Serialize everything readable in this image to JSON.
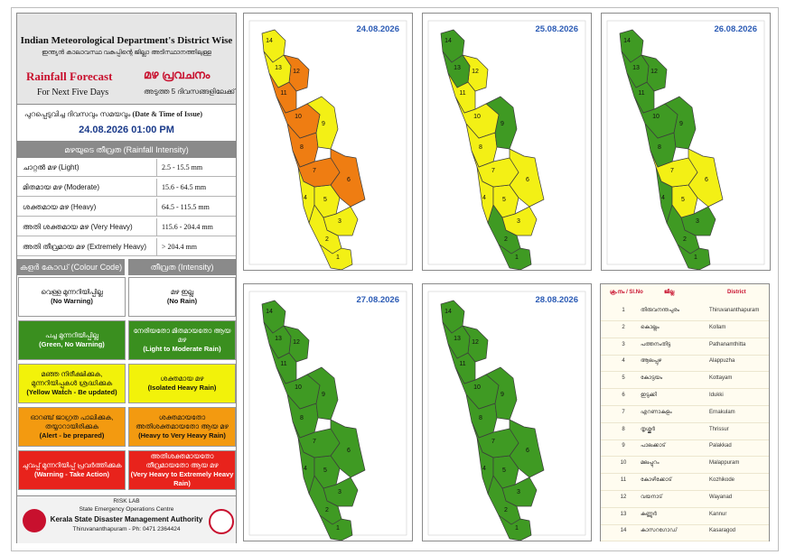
{
  "header": {
    "title_en": "Indian Meteorological Department's District Wise",
    "title_ml": "ഇന്ത്യൻ കാലാവസ്ഥ വകുപ്പിന്റെ ജില്ലാ അടിസ്ഥാനത്തിലുള്ള",
    "rainfall_forecast_en": "Rainfall Forecast",
    "rainfall_forecast_ml": "മഴ പ്രവചനം",
    "next_days_en": "For Next Five Days",
    "next_days_ml": "അടുത്ത 5 ദിവസങ്ങളിലേക്ക്"
  },
  "issue": {
    "label_ml": "പുറപ്പെടുവിച്ച ദിവസവും സമയവും",
    "label_en": "(Date & Time of Issue)",
    "datetime": "24.08.2026   01:00 PM"
  },
  "intensity": {
    "heading": "മഴയുടെ തീവ്രത (Rainfall Intensity)",
    "rows": [
      {
        "label": "ചാറ്റൽ മഴ (Light)",
        "range": "2.5 - 15.5 mm"
      },
      {
        "label": "മിതമായ മഴ (Moderate)",
        "range": "15.6 - 64.5 mm"
      },
      {
        "label": "ശക്തമായ മഴ (Heavy)",
        "range": "64.5 - 115.5 mm"
      },
      {
        "label": "അതി ശക്തമായ മഴ (Very Heavy)",
        "range": "115.6 - 204.4 mm"
      },
      {
        "label": "അതി തീവ്രമായ മഴ (Extremely Heavy)",
        "range": "> 204.4 mm"
      }
    ]
  },
  "colour_code": {
    "heading_left": "കളർ കോഡ് (Colour Code)",
    "heading_right": "തീവ്രത (Intensity)",
    "rows": [
      {
        "code_ml": "വെള്ള മുന്നറിയിപ്പില്ല",
        "code_en": "(No Warning)",
        "int_ml": "മഴ ഇല്ല",
        "int_en": "(No Rain)",
        "color": "#ffffff",
        "text": "#111111"
      },
      {
        "code_ml": "പച്ച മുന്നറിയിപ്പില്ല",
        "code_en": "(Green, No Warning)",
        "int_ml": "നേരിയതോ മിതമായതോ ആയ മഴ",
        "int_en": "(Light to Moderate Rain)",
        "color": "#3a8f1f",
        "text": "#ffffff"
      },
      {
        "code_ml": "മഞ്ഞ നിരീക്ഷിക്കുക, മുന്നറിയിപ്പുകൾ ശ്രദ്ധിക്കുക",
        "code_en": "(Yellow Watch - Be updated)",
        "int_ml": "ശക്തമായ മഴ",
        "int_en": "(Isolated Heavy Rain)",
        "color": "#f2f20a",
        "text": "#111111"
      },
      {
        "code_ml": "ഓറഞ്ച് ജാഗ്രത പാലിക്കുക, തയ്യാറായിരിക്കുക",
        "code_en": "(Alert - be prepared)",
        "int_ml": "ശക്തമായതോ അതിശക്തമായതോ ആയ മഴ",
        "int_en": "(Heavy to Very Heavy Rain)",
        "color": "#f39a10",
        "text": "#111111"
      },
      {
        "code_ml": "ചുവപ്പ് മുന്നറിയിപ്പ് പ്രവർത്തിക്കുക",
        "code_en": "(Warning - Take Action)",
        "int_ml": "അതിശക്തമായതോ തീവ്രമായതോ ആയ മഴ",
        "int_en": "(Very Heavy to Extremely Heavy Rain)",
        "color": "#e8231c",
        "text": "#ffffff"
      }
    ]
  },
  "footer": {
    "risk_lab": "RISK LAB",
    "centre": "State Emergency Operations Centre",
    "authority": "Kerala State Disaster Management Authority",
    "address": "Thiruvananthapuram - Ph: 0471 2364424"
  },
  "panels": [
    {
      "date": "24.08.2026",
      "colors": {
        "1": "yellow",
        "2": "yellow",
        "3": "yellow",
        "4": "yellow",
        "5": "yellow",
        "6": "orange",
        "7": "orange",
        "8": "orange",
        "9": "yellow",
        "10": "orange",
        "11": "orange",
        "12": "orange",
        "13": "yellow",
        "14": "yellow"
      }
    },
    {
      "date": "25.08.2026",
      "colors": {
        "1": "green",
        "2": "green",
        "3": "yellow",
        "4": "yellow",
        "5": "yellow",
        "6": "yellow",
        "7": "yellow",
        "8": "yellow",
        "9": "green",
        "10": "yellow",
        "11": "yellow",
        "12": "yellow",
        "13": "green",
        "14": "green"
      }
    },
    {
      "date": "26.08.2026",
      "colors": {
        "1": "green",
        "2": "green",
        "3": "green",
        "4": "green",
        "5": "yellow",
        "6": "yellow",
        "7": "yellow",
        "8": "green",
        "9": "green",
        "10": "green",
        "11": "green",
        "12": "green",
        "13": "green",
        "14": "green"
      }
    },
    {
      "date": "27.08.2026",
      "colors": {
        "1": "green",
        "2": "green",
        "3": "green",
        "4": "green",
        "5": "green",
        "6": "green",
        "7": "green",
        "8": "green",
        "9": "green",
        "10": "green",
        "11": "green",
        "12": "green",
        "13": "green",
        "14": "green"
      }
    },
    {
      "date": "28.08.2026",
      "colors": {
        "1": "green",
        "2": "green",
        "3": "green",
        "4": "green",
        "5": "green",
        "6": "green",
        "7": "green",
        "8": "green",
        "9": "green",
        "10": "green",
        "11": "green",
        "12": "green",
        "13": "green",
        "14": "green"
      }
    }
  ],
  "palette": {
    "green": "#3f9a23",
    "yellow": "#f3f015",
    "orange": "#ef7d12"
  },
  "district_legend": {
    "headings": {
      "no": "ക്ര.നം / Sl.No",
      "ml": "ജില്ല",
      "en": "District"
    },
    "rows": [
      {
        "no": "1",
        "ml": "തിരുവനന്തപുരം",
        "en": "Thiruvananthapuram"
      },
      {
        "no": "2",
        "ml": "കൊല്ലം",
        "en": "Kollam"
      },
      {
        "no": "3",
        "ml": "പത്തനംതിട്ട",
        "en": "Pathanamthitta"
      },
      {
        "no": "4",
        "ml": "ആലപ്പുഴ",
        "en": "Alappuzha"
      },
      {
        "no": "5",
        "ml": "കോട്ടയം",
        "en": "Kottayam"
      },
      {
        "no": "6",
        "ml": "ഇടുക്കി",
        "en": "Idukki"
      },
      {
        "no": "7",
        "ml": "എറണാകുളം",
        "en": "Ernakulam"
      },
      {
        "no": "8",
        "ml": "തൃശ്ശൂർ",
        "en": "Thrissur"
      },
      {
        "no": "9",
        "ml": "പാലക്കാട്",
        "en": "Palakkad"
      },
      {
        "no": "10",
        "ml": "മലപ്പുറം",
        "en": "Malappuram"
      },
      {
        "no": "11",
        "ml": "കോഴിക്കോട്",
        "en": "Kozhikode"
      },
      {
        "no": "12",
        "ml": "വയനാട്",
        "en": "Wayanad"
      },
      {
        "no": "13",
        "ml": "കണ്ണൂർ",
        "en": "Kannur"
      },
      {
        "no": "14",
        "ml": "കാസറഗോഡ്",
        "en": "Kasaragod"
      }
    ]
  }
}
